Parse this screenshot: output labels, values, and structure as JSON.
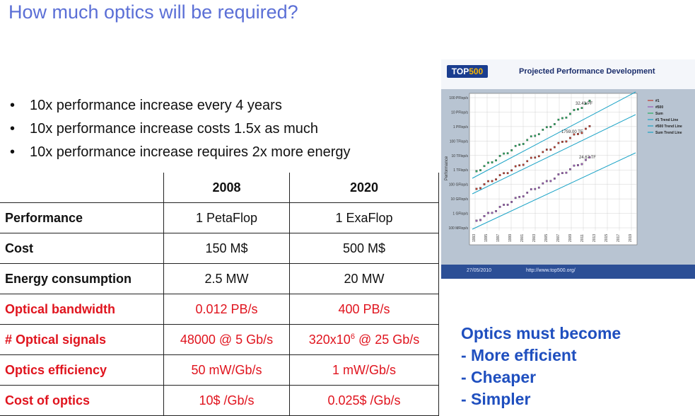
{
  "title": "How much optics will be required?",
  "bullets": [
    "10x performance increase every 4 years",
    "10x performance increase costs 1.5x as much",
    "10x performance increase requires 2x more energy"
  ],
  "table": {
    "headers": [
      "",
      "2008",
      "2020"
    ],
    "rows": [
      {
        "label": "Performance",
        "v2008": "1 PetaFlop",
        "v2020": "1 ExaFlop",
        "red": false
      },
      {
        "label": "Cost",
        "v2008": "150 M$",
        "v2020": "500 M$",
        "red": false
      },
      {
        "label": "Energy consumption",
        "v2008": "2.5 MW",
        "v2020": "20 MW",
        "red": false
      },
      {
        "label": "Optical bandwidth",
        "v2008": "0.012 PB/s",
        "v2020": "400 PB/s",
        "red": true
      },
      {
        "label": "# Optical signals",
        "v2008": "48000 @ 5 Gb/s",
        "v2020_base": "320x10",
        "v2020_sup": "6",
        "v2020_rest": " @ 25 Gb/s",
        "red": true
      },
      {
        "label": "Optics efficiency",
        "v2008": "50 mW/Gb/s",
        "v2020": "1 mW/Gb/s",
        "red": true
      },
      {
        "label": "Cost of optics",
        "v2008": "10$ /Gb/s",
        "v2020": "0.025$ /Gb/s",
        "red": true
      }
    ]
  },
  "top500": {
    "logo_a": "TOP",
    "logo_b": "500",
    "title": "Projected Performance Development",
    "y_axis_label": "Performance",
    "y_ticks": [
      "100 PFlop/s",
      "10 PFlop/s",
      "1 PFlop/s",
      "100 TFlop/s",
      "10 TFlop/s",
      "1 TFlop/s",
      "100 GFlop/s",
      "10 GFlop/s",
      "1 GFlop/s",
      "100 MFlop/s"
    ],
    "x_ticks": [
      "1993",
      "1995",
      "1997",
      "1999",
      "2001",
      "2003",
      "2005",
      "2007",
      "2009",
      "2011",
      "2013",
      "2015",
      "2017",
      "2019"
    ],
    "annotations": [
      "32.43 PF",
      "1759.00 TF",
      "24.67 TF"
    ],
    "legend": [
      "#1",
      "#500",
      "Sum",
      "#1 Trend Line",
      "#500 Trend Line",
      "Sum Trend Line"
    ],
    "footer_date": "27/05/2010",
    "footer_url": "http://www.top500.org/",
    "colors": {
      "n1": "#c0392b",
      "n500": "#9b59b6",
      "sum": "#27ae60",
      "trend": "#1ba3c6"
    }
  },
  "optics_box": {
    "lines": [
      "Optics must become",
      "- More efficient",
      "- Cheaper",
      "- Simpler"
    ]
  }
}
